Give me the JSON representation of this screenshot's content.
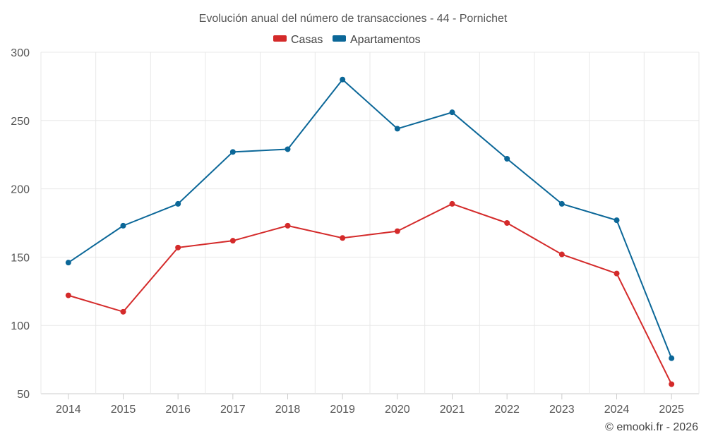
{
  "chart_data": {
    "type": "line",
    "title": "Evolución anual del número de transacciones - 44 - Pornichet",
    "categories": [
      "2014",
      "2015",
      "2016",
      "2017",
      "2018",
      "2019",
      "2020",
      "2021",
      "2022",
      "2023",
      "2024",
      "2025"
    ],
    "series": [
      {
        "name": "Casas",
        "color": "#d42a2a",
        "values": [
          122,
          110,
          157,
          162,
          173,
          164,
          169,
          189,
          175,
          152,
          138,
          57
        ]
      },
      {
        "name": "Apartamentos",
        "color": "#0b6798",
        "values": [
          146,
          173,
          189,
          227,
          229,
          280,
          244,
          256,
          222,
          189,
          177,
          76
        ]
      }
    ],
    "yticks": [
      50,
      100,
      150,
      200,
      250,
      300
    ],
    "ylim": [
      50,
      300
    ],
    "xlabel": "",
    "ylabel": "",
    "grid": true,
    "legend_position": "top-center",
    "credit": "© emooki.fr - 2026"
  }
}
